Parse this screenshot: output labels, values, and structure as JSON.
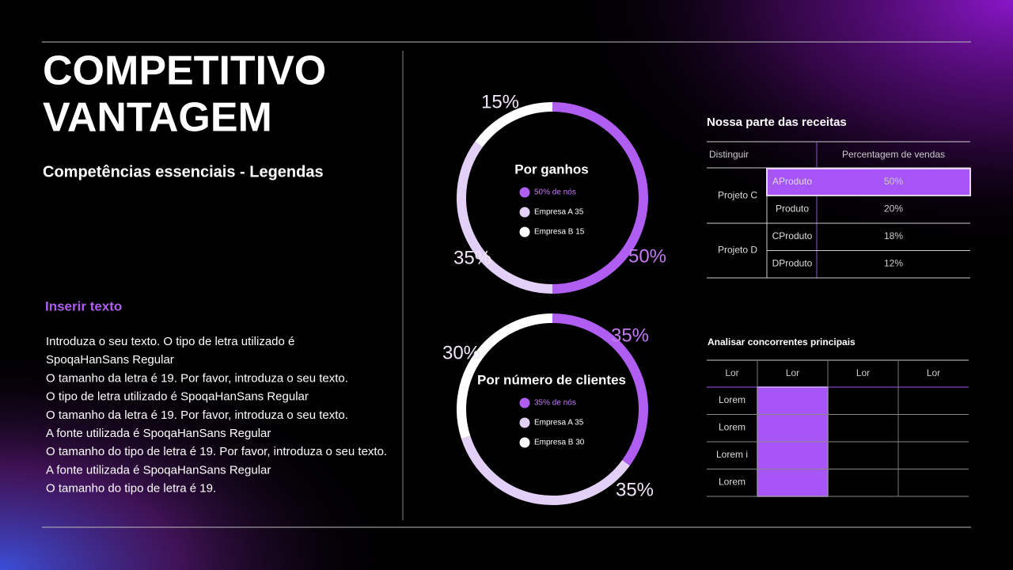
{
  "header": {
    "title_lines": [
      "COMPETITIVO",
      "VANTAGEM"
    ],
    "subtitle": "Competências essenciais - Legendas"
  },
  "text_block": {
    "heading": "Inserir texto",
    "lines": [
      "Introduza o seu texto. O tipo de letra utilizado é",
      "SpoqaHanSans Regular",
      "O tamanho da letra é 19. Por favor, introduza o seu texto.",
      "O tipo de letra utilizado é SpoqaHanSans Regular",
      "O tamanho da letra é 19. Por favor, introduza o seu texto.",
      "A fonte utilizada é SpoqaHanSans Regular",
      "O tamanho do tipo de letra é 19. Por favor, introduza o seu texto.",
      "A fonte utilizada é SpoqaHanSans Regular",
      "O tamanho do tipo de letra é 19."
    ]
  },
  "chart_data": [
    {
      "type": "pie",
      "title": "Por ganhos",
      "categories": [
        "50% de nós",
        "Empresa A 35",
        "Empresa B 15"
      ],
      "values": [
        50,
        35,
        15
      ],
      "value_labels": [
        "50%",
        "35%",
        "15%"
      ],
      "colors": [
        "#b05ef2",
        "#e3d0f6",
        "#ffffff"
      ]
    },
    {
      "type": "pie",
      "title": "Por número de clientes",
      "categories": [
        "35% de nós",
        "Empresa A 35",
        "Empresa B 30"
      ],
      "values": [
        35,
        35,
        30
      ],
      "value_labels": [
        "35%",
        "35%",
        "30%"
      ],
      "colors": [
        "#b05ef2",
        "#e3d0f6",
        "#ffffff"
      ]
    }
  ],
  "table1": {
    "title": "Nossa parte das receitas",
    "headers": [
      "Distinguir",
      "Percentagem de vendas"
    ],
    "groups": [
      {
        "name": "Projeto C",
        "rows": [
          [
            "AProduto",
            "50%"
          ],
          [
            "Produto",
            "20%"
          ]
        ]
      },
      {
        "name": "Projeto D",
        "rows": [
          [
            "CProduto",
            "18%"
          ],
          [
            "DProduto",
            "12%"
          ]
        ]
      }
    ]
  },
  "table2": {
    "title": "Analisar concorrentes principais",
    "headers": [
      "Lor",
      "Lor",
      "Lor",
      "Lor"
    ],
    "rows": [
      "Lorem",
      "Lorem",
      "Lorem i",
      "Lorem"
    ]
  }
}
